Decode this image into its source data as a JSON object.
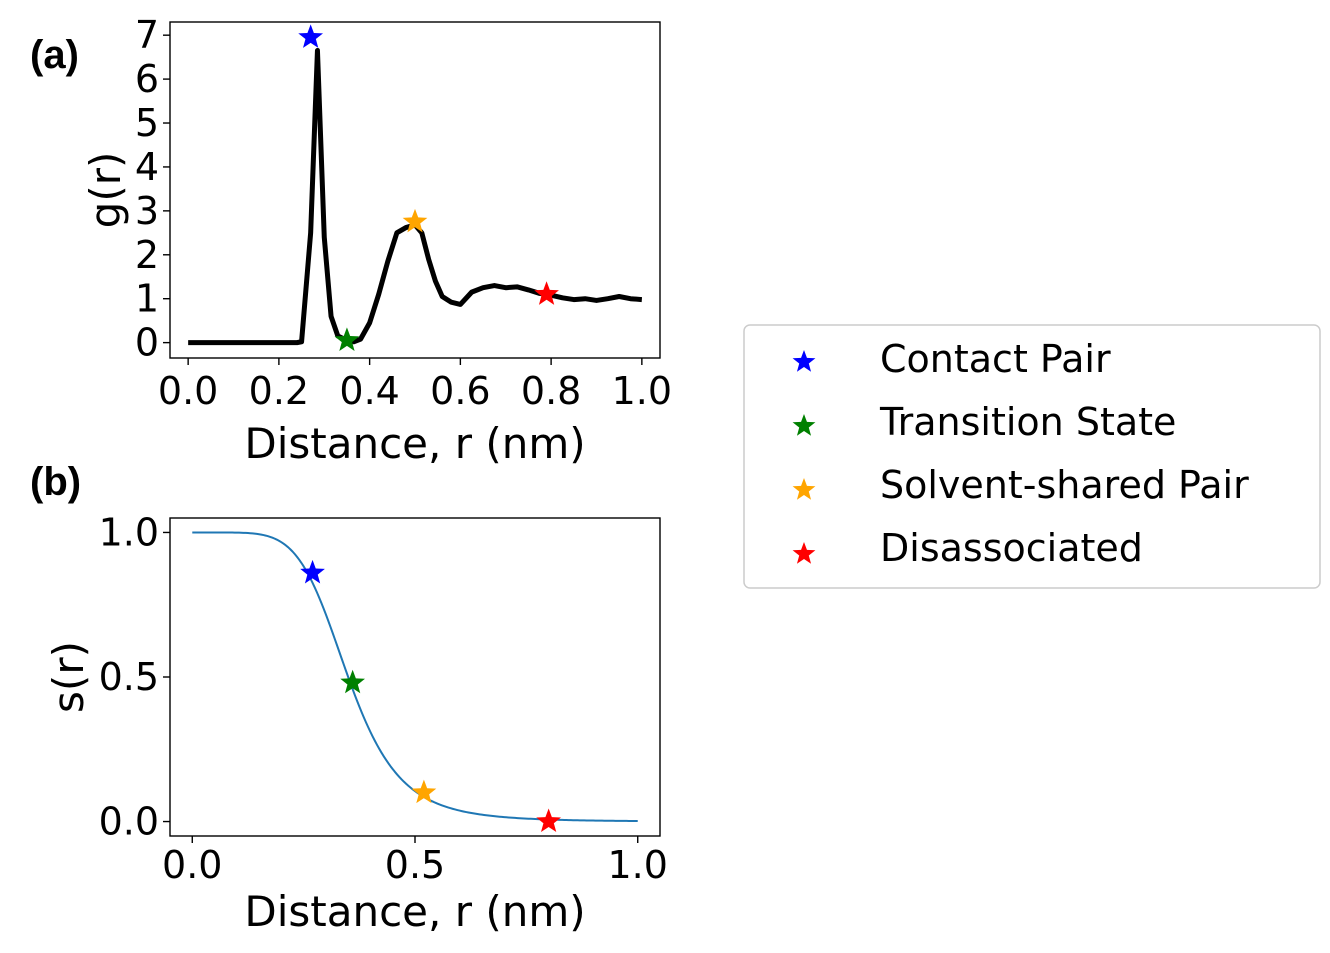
{
  "panels": [
    {
      "label": "(a)"
    },
    {
      "label": "(b)"
    }
  ],
  "legend": {
    "items": [
      {
        "label": "Contact Pair",
        "color": "#0000ff"
      },
      {
        "label": "Transition State",
        "color": "#008000"
      },
      {
        "label": "Solvent-shared Pair",
        "color": "#ffa500"
      },
      {
        "label": "Disassociated",
        "color": "#ff0000"
      }
    ]
  },
  "chart_data": [
    {
      "type": "line",
      "xlabel": "Distance, r (nm)",
      "ylabel": "g(r)",
      "xlim": [
        -0.04,
        1.04
      ],
      "ylim": [
        -0.35,
        7.3
      ],
      "xticks": [
        "0.0",
        "0.2",
        "0.4",
        "0.6",
        "0.8",
        "1.0"
      ],
      "yticks": [
        "0",
        "1",
        "2",
        "3",
        "4",
        "5",
        "6",
        "7"
      ],
      "series": [
        {
          "color": "#000000",
          "x": [
            0.0,
            0.05,
            0.1,
            0.15,
            0.2,
            0.24,
            0.25,
            0.27,
            0.285,
            0.3,
            0.315,
            0.33,
            0.35,
            0.365,
            0.38,
            0.4,
            0.42,
            0.44,
            0.46,
            0.48,
            0.5,
            0.515,
            0.53,
            0.545,
            0.56,
            0.58,
            0.6,
            0.625,
            0.65,
            0.675,
            0.7,
            0.725,
            0.75,
            0.775,
            0.8,
            0.825,
            0.85,
            0.875,
            0.9,
            0.925,
            0.95,
            0.975,
            1.0
          ],
          "y": [
            0.0,
            0.0,
            0.0,
            0.0,
            0.0,
            0.0,
            0.02,
            2.5,
            6.65,
            2.4,
            0.6,
            0.15,
            0.05,
            0.02,
            0.08,
            0.45,
            1.1,
            1.85,
            2.5,
            2.62,
            2.68,
            2.5,
            1.9,
            1.4,
            1.05,
            0.92,
            0.87,
            1.15,
            1.25,
            1.3,
            1.25,
            1.27,
            1.2,
            1.12,
            1.08,
            1.02,
            0.98,
            1.0,
            0.96,
            1.0,
            1.05,
            1.0,
            0.98
          ]
        }
      ],
      "markers": [
        {
          "name": "Contact Pair",
          "x": 0.27,
          "y": 6.95,
          "color": "#0000ff"
        },
        {
          "name": "Transition State",
          "x": 0.35,
          "y": 0.05,
          "color": "#008000"
        },
        {
          "name": "Solvent-shared Pair",
          "x": 0.5,
          "y": 2.75,
          "color": "#ffa500"
        },
        {
          "name": "Disassociated",
          "x": 0.79,
          "y": 1.1,
          "color": "#ff0000"
        }
      ]
    },
    {
      "type": "line",
      "xlabel": "Distance, r (nm)",
      "ylabel": "s(r)",
      "xlim": [
        -0.05,
        1.05
      ],
      "ylim": [
        -0.05,
        1.05
      ],
      "xticks": [
        "0.0",
        "0.5",
        "1.0"
      ],
      "xtick_values": [
        0,
        0.5,
        1.0
      ],
      "yticks": [
        "0.0",
        "0.5",
        "1.0"
      ],
      "ytick_values": [
        0,
        0.5,
        1.0
      ],
      "series": [
        {
          "color": "#1f77b4",
          "function": "switching",
          "r0": 0.35,
          "n": 6,
          "d0": 0.0,
          "x_range": [
            0.0,
            1.0
          ]
        }
      ],
      "markers": [
        {
          "name": "Contact Pair",
          "x": 0.27,
          "y": 0.86,
          "color": "#0000ff"
        },
        {
          "name": "Transition State",
          "x": 0.36,
          "y": 0.48,
          "color": "#008000"
        },
        {
          "name": "Solvent-shared Pair",
          "x": 0.52,
          "y": 0.1,
          "color": "#ffa500"
        },
        {
          "name": "Disassociated",
          "x": 0.8,
          "y": 0.0,
          "color": "#ff0000"
        }
      ]
    }
  ]
}
